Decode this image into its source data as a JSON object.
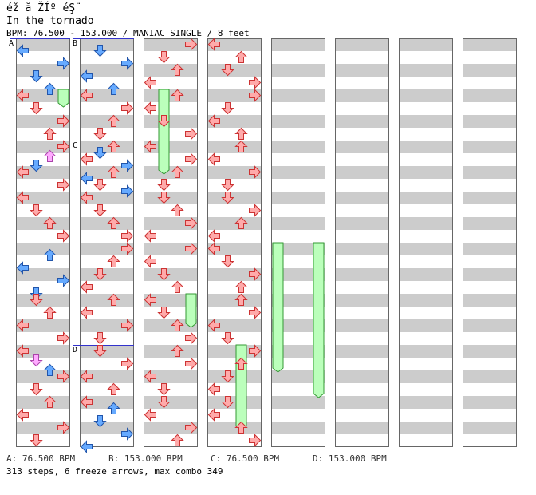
{
  "header": {
    "title": "éž ă ŽÍº éŞ¨",
    "subtitle": "In the tornado",
    "bpm_line": "BPM: 76.500 - 153.000 / MANIAC SINGLE / 8 feet"
  },
  "footer": {
    "bpm_changes": [
      {
        "label": "A: 76.500 BPM"
      },
      {
        "label": "B: 153.000 BPM"
      },
      {
        "label": "C: 76.500 BPM"
      },
      {
        "label": "D: 153.000 BPM"
      }
    ],
    "summary": "313 steps, 6 freeze arrows, max combo 349"
  },
  "colors": {
    "band_gray": "#cccccc",
    "band_white": "#ffffff",
    "red_fill": "#ffaaaa",
    "red_stroke": "#cc3333",
    "blue_fill": "#66aaff",
    "blue_stroke": "#2255aa",
    "pink_fill": "#ffaaff",
    "pink_stroke": "#aa44aa",
    "freeze_fill": "#bbffbb",
    "freeze_stroke": "#339933",
    "marker_line": "#3333cc"
  },
  "chart_data": {
    "type": "table",
    "chart": "DDR step chart",
    "difficulty": "MANIAC SINGLE",
    "feet": 8,
    "steps": 313,
    "freeze_arrows": 6,
    "max_combo": 349,
    "bpm_range": [
      76.5,
      153.0
    ],
    "measures_shown": 36,
    "bpm_markers": [
      {
        "id": "A",
        "measure": 0,
        "bpm": 76.5
      },
      {
        "id": "B",
        "measure": 8,
        "bpm": 153.0
      },
      {
        "id": "C",
        "measure": 10,
        "bpm": 76.5
      },
      {
        "id": "D",
        "measure": 14,
        "bpm": 153.0
      }
    ],
    "lanes": [
      "left",
      "down",
      "up",
      "right"
    ],
    "arrows": [
      [
        0,
        2,
        0
      ],
      [
        0,
        6,
        3
      ],
      [
        0,
        10,
        1
      ],
      [
        0,
        14,
        2
      ],
      [
        1,
        0,
        0
      ],
      [
        1,
        4,
        1
      ],
      [
        1,
        8,
        3
      ],
      [
        1,
        12,
        2
      ],
      [
        2,
        0,
        3
      ],
      [
        2,
        3,
        2
      ],
      [
        2,
        6,
        1
      ],
      [
        2,
        8,
        0
      ],
      [
        2,
        12,
        3
      ],
      [
        3,
        0,
        0
      ],
      [
        3,
        4,
        1
      ],
      [
        3,
        8,
        2
      ],
      [
        3,
        12,
        3
      ],
      [
        4,
        2,
        2
      ],
      [
        4,
        6,
        0
      ],
      [
        4,
        10,
        3
      ],
      [
        4,
        14,
        1
      ],
      [
        5,
        0,
        1
      ],
      [
        5,
        4,
        2
      ],
      [
        5,
        8,
        0
      ],
      [
        5,
        12,
        3
      ],
      [
        6,
        0,
        0
      ],
      [
        6,
        3,
        1
      ],
      [
        6,
        6,
        2
      ],
      [
        6,
        8,
        3
      ],
      [
        6,
        12,
        1
      ],
      [
        7,
        0,
        2
      ],
      [
        7,
        4,
        0
      ],
      [
        7,
        8,
        3
      ],
      [
        7,
        12,
        1
      ],
      [
        8,
        2,
        1
      ],
      [
        8,
        6,
        3
      ],
      [
        8,
        10,
        0
      ],
      [
        8,
        14,
        2
      ],
      [
        9,
        0,
        0
      ],
      [
        9,
        4,
        3
      ],
      [
        9,
        8,
        2
      ],
      [
        9,
        12,
        1
      ],
      [
        10,
        0,
        2
      ],
      [
        10,
        2,
        1
      ],
      [
        10,
        4,
        0
      ],
      [
        10,
        6,
        3
      ],
      [
        10,
        8,
        2
      ],
      [
        10,
        10,
        0
      ],
      [
        10,
        12,
        1
      ],
      [
        10,
        14,
        3
      ],
      [
        11,
        0,
        0
      ],
      [
        11,
        4,
        1
      ],
      [
        11,
        8,
        2
      ],
      [
        11,
        12,
        3
      ],
      [
        12,
        0,
        3
      ],
      [
        12,
        4,
        2
      ],
      [
        12,
        8,
        1
      ],
      [
        12,
        12,
        0
      ],
      [
        13,
        0,
        2
      ],
      [
        13,
        4,
        0
      ],
      [
        13,
        8,
        3
      ],
      [
        13,
        12,
        1
      ],
      [
        14,
        0,
        1
      ],
      [
        14,
        4,
        3
      ],
      [
        14,
        8,
        0
      ],
      [
        14,
        12,
        2
      ],
      [
        15,
        0,
        0
      ],
      [
        15,
        2,
        2
      ],
      [
        15,
        6,
        1
      ],
      [
        15,
        10,
        3
      ],
      [
        15,
        14,
        0
      ],
      [
        16,
        0,
        3
      ],
      [
        16,
        4,
        1
      ],
      [
        16,
        8,
        2
      ],
      [
        16,
        12,
        0
      ],
      [
        17,
        0,
        2
      ],
      [
        17,
        4,
        0
      ],
      [
        17,
        8,
        1
      ],
      [
        17,
        12,
        3
      ],
      [
        18,
        0,
        0
      ],
      [
        18,
        4,
        3
      ],
      [
        18,
        8,
        2
      ],
      [
        18,
        12,
        1
      ],
      [
        19,
        0,
        1
      ],
      [
        19,
        4,
        2
      ],
      [
        19,
        8,
        3
      ],
      [
        19,
        12,
        0
      ],
      [
        20,
        0,
        3
      ],
      [
        20,
        4,
        0
      ],
      [
        20,
        8,
        1
      ],
      [
        20,
        12,
        2
      ],
      [
        21,
        0,
        0
      ],
      [
        21,
        4,
        1
      ],
      [
        21,
        8,
        2
      ],
      [
        21,
        12,
        3
      ],
      [
        22,
        0,
        2
      ],
      [
        22,
        4,
        3
      ],
      [
        22,
        8,
        0
      ],
      [
        22,
        12,
        1
      ],
      [
        23,
        0,
        1
      ],
      [
        23,
        4,
        0
      ],
      [
        23,
        8,
        3
      ],
      [
        23,
        12,
        2
      ],
      [
        24,
        0,
        0
      ],
      [
        24,
        4,
        2
      ],
      [
        24,
        8,
        1
      ],
      [
        24,
        12,
        3
      ],
      [
        25,
        0,
        3
      ],
      [
        25,
        4,
        1
      ],
      [
        25,
        8,
        0
      ],
      [
        25,
        12,
        2
      ],
      [
        26,
        0,
        2
      ],
      [
        26,
        4,
        0
      ],
      [
        26,
        8,
        3
      ],
      [
        26,
        12,
        1
      ],
      [
        27,
        0,
        1
      ],
      [
        27,
        4,
        3
      ],
      [
        27,
        8,
        2
      ],
      [
        27,
        12,
        0
      ],
      [
        28,
        0,
        0
      ],
      [
        28,
        4,
        1
      ],
      [
        28,
        8,
        3
      ],
      [
        28,
        12,
        2
      ],
      [
        29,
        0,
        2
      ],
      [
        29,
        4,
        3
      ],
      [
        29,
        8,
        0
      ],
      [
        29,
        12,
        1
      ],
      [
        30,
        0,
        3
      ],
      [
        30,
        4,
        2
      ],
      [
        30,
        8,
        1
      ],
      [
        30,
        12,
        0
      ],
      [
        31,
        0,
        1
      ],
      [
        31,
        4,
        0
      ],
      [
        31,
        8,
        2
      ],
      [
        31,
        12,
        3
      ]
    ],
    "freezes": [
      {
        "lane": 3,
        "start": [
          1,
          0
        ],
        "end": [
          1,
          3
        ]
      },
      {
        "lane": 1,
        "start": [
          17,
          0
        ],
        "end": [
          18,
          8
        ]
      },
      {
        "lane": 3,
        "start": [
          21,
          0
        ],
        "end": [
          21,
          8
        ]
      },
      {
        "lane": 2,
        "start": [
          30,
          0
        ],
        "end": [
          31,
          8
        ]
      },
      {
        "lane": 0,
        "start": [
          36,
          0
        ],
        "end": [
          38,
          6
        ]
      },
      {
        "lane": 3,
        "start": [
          36,
          0
        ],
        "end": [
          38,
          14
        ]
      }
    ]
  }
}
